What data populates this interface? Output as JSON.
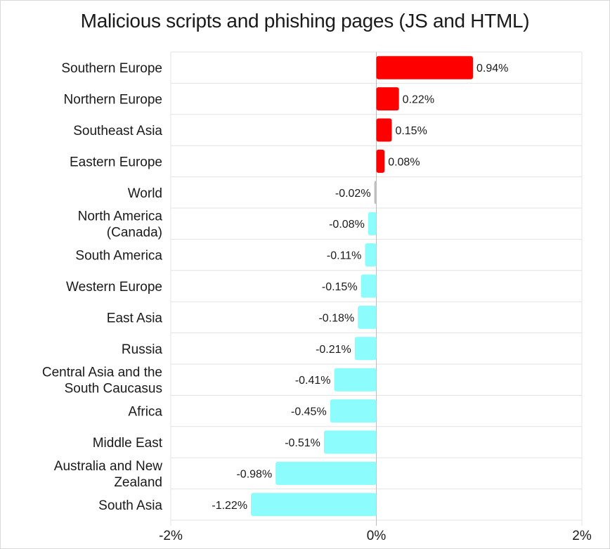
{
  "chart_data": {
    "type": "bar",
    "orientation": "horizontal",
    "title": "Malicious scripts and phishing pages (JS and HTML)",
    "categories": [
      "Southern Europe",
      "Northern Europe",
      "Southeast Asia",
      "Eastern Europe",
      "World",
      "North America (Canada)",
      "South America",
      "Western Europe",
      "East Asia",
      "Russia",
      "Central Asia and the South Caucasus",
      "Africa",
      "Middle East",
      "Australia and New Zealand",
      "South Asia"
    ],
    "category_lines": [
      [
        "Southern Europe"
      ],
      [
        "Northern Europe"
      ],
      [
        "Southeast Asia"
      ],
      [
        "Eastern Europe"
      ],
      [
        "World"
      ],
      [
        "North America",
        "(Canada)"
      ],
      [
        "South America"
      ],
      [
        "Western Europe"
      ],
      [
        "East Asia"
      ],
      [
        "Russia"
      ],
      [
        "Central Asia and the",
        "South Caucasus"
      ],
      [
        "Africa"
      ],
      [
        "Middle East"
      ],
      [
        "Australia and New",
        "Zealand"
      ],
      [
        "South Asia"
      ]
    ],
    "values": [
      0.94,
      0.22,
      0.15,
      0.08,
      -0.02,
      -0.08,
      -0.11,
      -0.15,
      -0.18,
      -0.21,
      -0.41,
      -0.45,
      -0.51,
      -0.98,
      -1.22
    ],
    "data_labels": [
      "0.94%",
      "0.22%",
      "0.15%",
      "0.08%",
      "-0.02%",
      "-0.08%",
      "-0.11%",
      "-0.15%",
      "-0.18%",
      "-0.21%",
      "-0.41%",
      "-0.45%",
      "-0.51%",
      "-0.98%",
      "-1.22%"
    ],
    "xlim": [
      -2,
      2
    ],
    "xticks": [
      -2,
      0,
      2
    ],
    "xtick_labels": [
      "-2%",
      "0%",
      "2%"
    ],
    "xlabel": "",
    "ylabel": "",
    "grid": true,
    "legend": "none",
    "colors": {
      "positive": "#ff0000",
      "negative": "#8cfcfc",
      "world": "#c0c0c0",
      "grid": "#e3e3e3",
      "axis": "#bdbdbd"
    }
  }
}
